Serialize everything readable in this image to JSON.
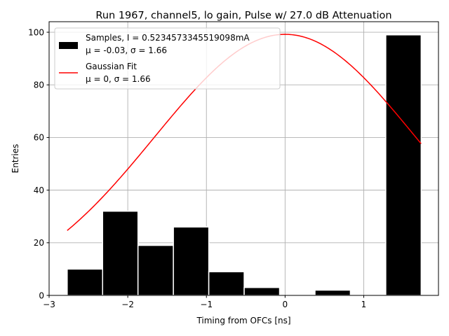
{
  "chart_data": {
    "type": "bar",
    "title": "Run 1967, channel5, lo gain, Pulse w/ 27.0 dB Attenuation",
    "xlabel": "Timing from OFCs [ns]",
    "ylabel": "Entries",
    "xlim": [
      -3.0,
      1.95
    ],
    "ylim": [
      0,
      104
    ],
    "grid": true,
    "legend_position": "top-left",
    "xticks": [
      -3,
      -2,
      -1,
      0,
      1
    ],
    "xtick_labels": [
      "−3",
      "−2",
      "−1",
      "0",
      "1"
    ],
    "yticks": [
      0,
      20,
      40,
      60,
      80,
      100
    ],
    "ytick_labels": [
      "0",
      "20",
      "40",
      "60",
      "80",
      "100"
    ],
    "histogram": {
      "name": "Samples, I = 0.5234573345519098mA",
      "stats_text": "μ = -0.03, σ = 1.66",
      "color": "#000000",
      "bin_edges": [
        -2.77,
        -2.32,
        -1.87,
        -1.42,
        -0.97,
        -0.52,
        -0.07,
        0.38,
        0.83,
        1.28,
        1.73
      ],
      "values": [
        10,
        32,
        19,
        26,
        9,
        3,
        0,
        2,
        0,
        99
      ]
    },
    "fit": {
      "name": "Gaussian Fit",
      "stats_text": "μ = 0, σ = 1.66",
      "color": "#ff0000",
      "amplitude": 99.2,
      "mu": 0,
      "sigma": 1.66,
      "x_range": [
        -2.77,
        1.73
      ]
    }
  }
}
